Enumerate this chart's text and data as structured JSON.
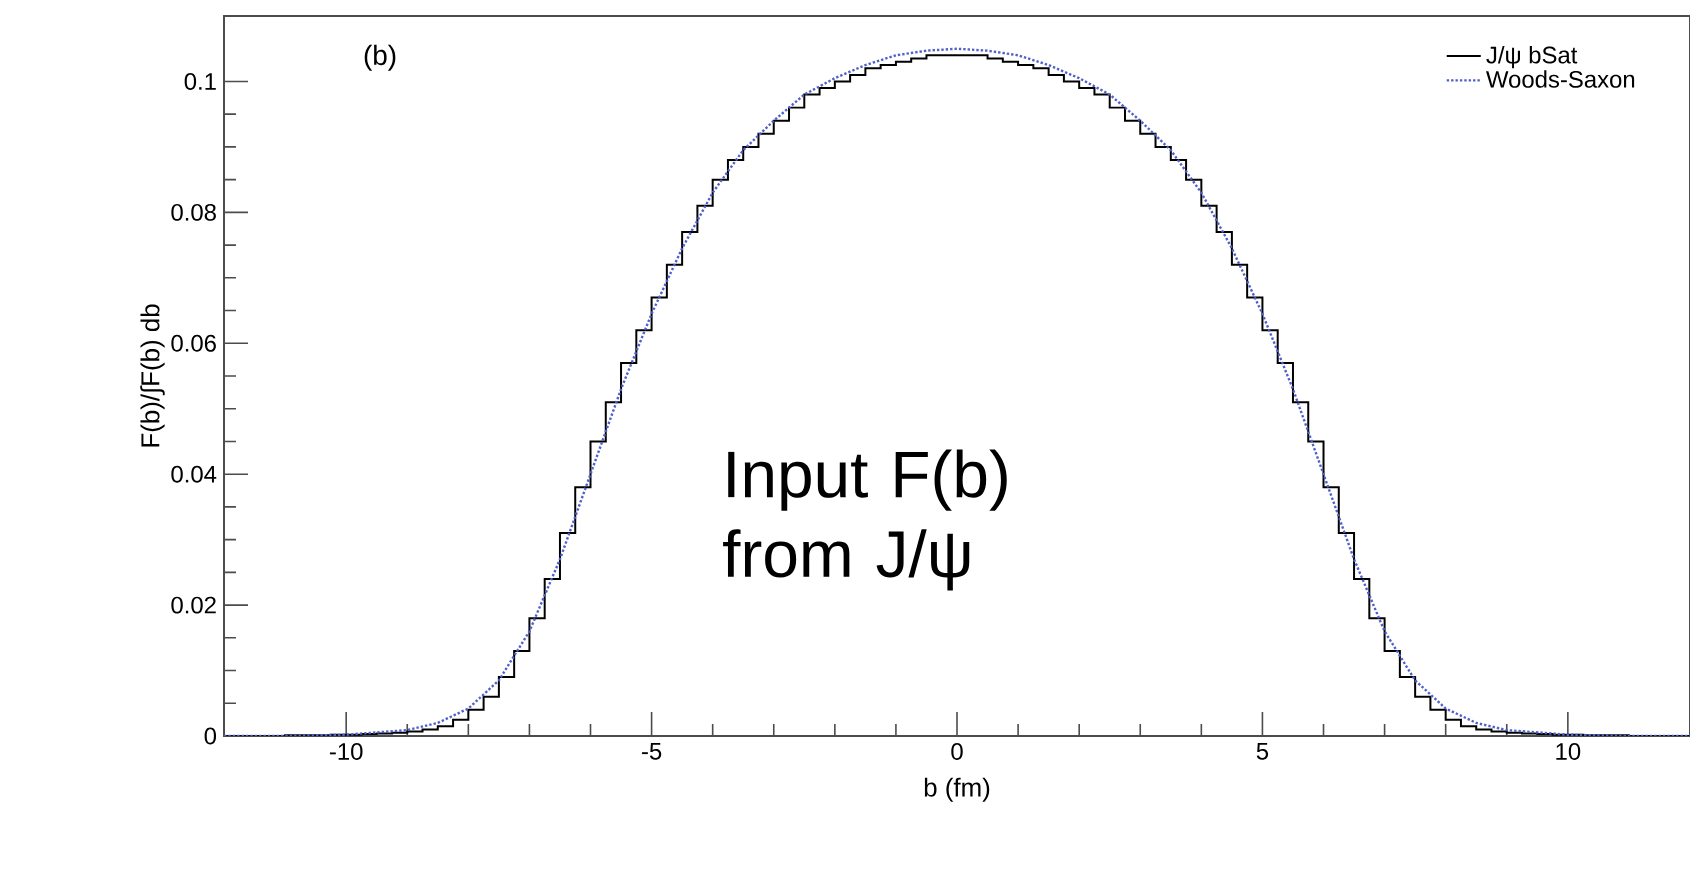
{
  "chart_data": {
    "type": "histogram",
    "xlabel": "b (fm)",
    "ylabel": "F(b)/∫F(b) db",
    "annotations": [
      "(b)",
      "Input F(b) from J/ψ"
    ],
    "xlim": [
      -12,
      12
    ],
    "ylim": [
      0,
      0.11
    ],
    "xticks": [
      -10,
      -5,
      0,
      5,
      10
    ],
    "yticks": [
      0,
      0.02,
      0.04,
      0.06,
      0.08,
      0.1
    ],
    "legend": "top right",
    "grid": false,
    "marker": "none",
    "bins": [
      -12,
      -11.75,
      -11.5,
      -11.25,
      -11,
      -10.75,
      -10.5,
      -10.25,
      -10,
      -9.75,
      -9.5,
      -9.25,
      -9,
      -8.75,
      -8.5,
      -8.25,
      -8,
      -7.75,
      -7.5,
      -7.25,
      -7,
      -6.75,
      -6.5,
      -6.25,
      -6,
      -5.75,
      -5.5,
      -5.25,
      -5,
      -4.75,
      -4.5,
      -4.25,
      -4,
      -3.75,
      -3.5,
      -3.25,
      -3,
      -2.75,
      -2.5,
      -2.25,
      -2,
      -1.75,
      -1.5,
      -1.25,
      -1,
      -0.75,
      -0.5,
      -0.25,
      0,
      0.25,
      0.5,
      0.75,
      1,
      1.25,
      1.5,
      1.75,
      2,
      2.25,
      2.5,
      2.75,
      3,
      3.25,
      3.5,
      3.75,
      4,
      4.25,
      4.5,
      4.75,
      5,
      5.25,
      5.5,
      5.75,
      6,
      6.25,
      6.5,
      6.75,
      7,
      7.25,
      7.5,
      7.75,
      8,
      8.25,
      8.5,
      8.75,
      9,
      9.25,
      9.5,
      9.75,
      10,
      10.25,
      10.5,
      10.75,
      11,
      11.25,
      11.5,
      11.75,
      12
    ],
    "series": [
      {
        "name": "J/ψ  bSat",
        "color": "#000000",
        "line_style": "solid",
        "values": [
          0,
          0,
          0,
          0,
          0.0001,
          0.0001,
          0.0001,
          0.0002,
          0.0002,
          0.0003,
          0.0004,
          0.0005,
          0.0007,
          0.001,
          0.0015,
          0.0025,
          0.004,
          0.006,
          0.009,
          0.013,
          0.018,
          0.024,
          0.031,
          0.038,
          0.045,
          0.051,
          0.057,
          0.062,
          0.067,
          0.072,
          0.077,
          0.081,
          0.085,
          0.088,
          0.09,
          0.092,
          0.094,
          0.096,
          0.098,
          0.099,
          0.1,
          0.101,
          0.102,
          0.1025,
          0.103,
          0.1035,
          0.104,
          0.104,
          0.104,
          0.104,
          0.1035,
          0.103,
          0.1025,
          0.102,
          0.101,
          0.1,
          0.099,
          0.098,
          0.096,
          0.094,
          0.092,
          0.09,
          0.088,
          0.085,
          0.081,
          0.077,
          0.072,
          0.067,
          0.062,
          0.057,
          0.051,
          0.045,
          0.038,
          0.031,
          0.024,
          0.018,
          0.013,
          0.009,
          0.006,
          0.004,
          0.0025,
          0.0015,
          0.001,
          0.0007,
          0.0005,
          0.0004,
          0.0003,
          0.0002,
          0.0002,
          0.0001,
          0.0001,
          0.0001,
          0,
          0,
          0,
          0
        ]
      },
      {
        "name": "Woods-Saxon",
        "type": "line",
        "color": "#5060c8",
        "line_style": "dotted",
        "x": [
          -12,
          -11,
          -10,
          -9,
          -8.5,
          -8,
          -7.5,
          -7,
          -6.5,
          -6,
          -5.5,
          -5,
          -4.5,
          -4,
          -3.5,
          -3,
          -2.5,
          -2,
          -1.5,
          -1,
          -0.5,
          0,
          0.5,
          1,
          1.5,
          2,
          2.5,
          3,
          3.5,
          4,
          4.5,
          5,
          5.5,
          6,
          6.5,
          7,
          7.5,
          8,
          8.5,
          9,
          10,
          11,
          12
        ],
        "values": [
          0,
          0,
          0.0002,
          0.0009,
          0.002,
          0.0042,
          0.0085,
          0.016,
          0.027,
          0.04,
          0.053,
          0.0645,
          0.0745,
          0.083,
          0.0895,
          0.094,
          0.098,
          0.1005,
          0.1025,
          0.104,
          0.1047,
          0.105,
          0.1047,
          0.104,
          0.1025,
          0.1005,
          0.098,
          0.094,
          0.0895,
          0.083,
          0.0745,
          0.0645,
          0.053,
          0.04,
          0.027,
          0.016,
          0.0085,
          0.0042,
          0.002,
          0.0009,
          0.0002,
          0,
          0
        ]
      }
    ]
  }
}
